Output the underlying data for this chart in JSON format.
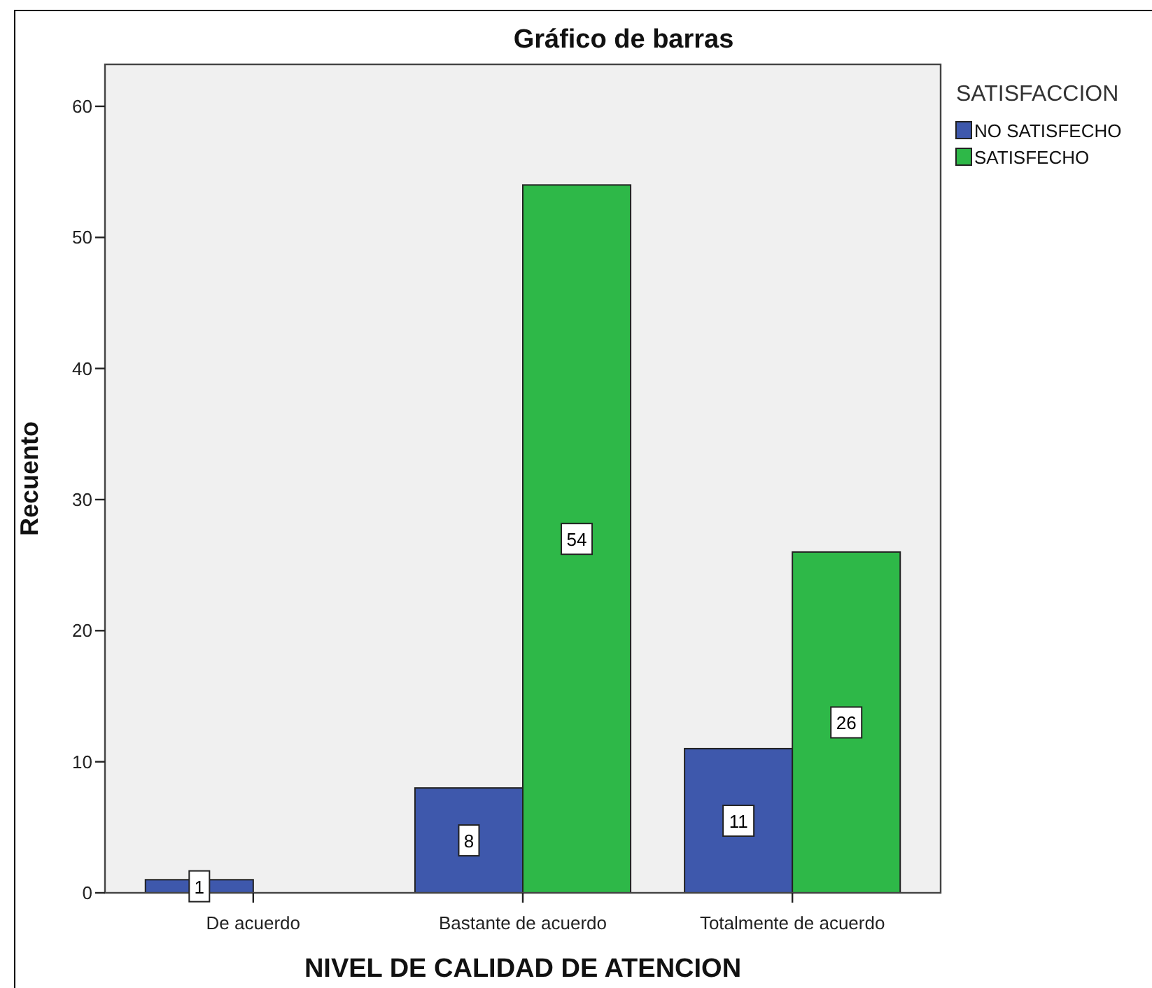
{
  "chart_data": {
    "type": "bar",
    "title": "Gráfico de barras",
    "xlabel": "NIVEL DE CALIDAD DE ATENCION",
    "ylabel": "Recuento",
    "legend_title": "SATISFACCION",
    "categories": [
      "De acuerdo",
      "Bastante de acuerdo",
      "Totalmente de acuerdo"
    ],
    "series": [
      {
        "name": "NO SATISFECHO",
        "color": "#3e58ac",
        "values": [
          1,
          8,
          11
        ]
      },
      {
        "name": "SATISFECHO",
        "color": "#2eb848",
        "values": [
          null,
          54,
          26
        ]
      }
    ],
    "ylim": [
      0,
      63.2
    ],
    "yticks": [
      0,
      10,
      20,
      30,
      40,
      50,
      60
    ],
    "legend": "top right",
    "data_labels": true
  }
}
